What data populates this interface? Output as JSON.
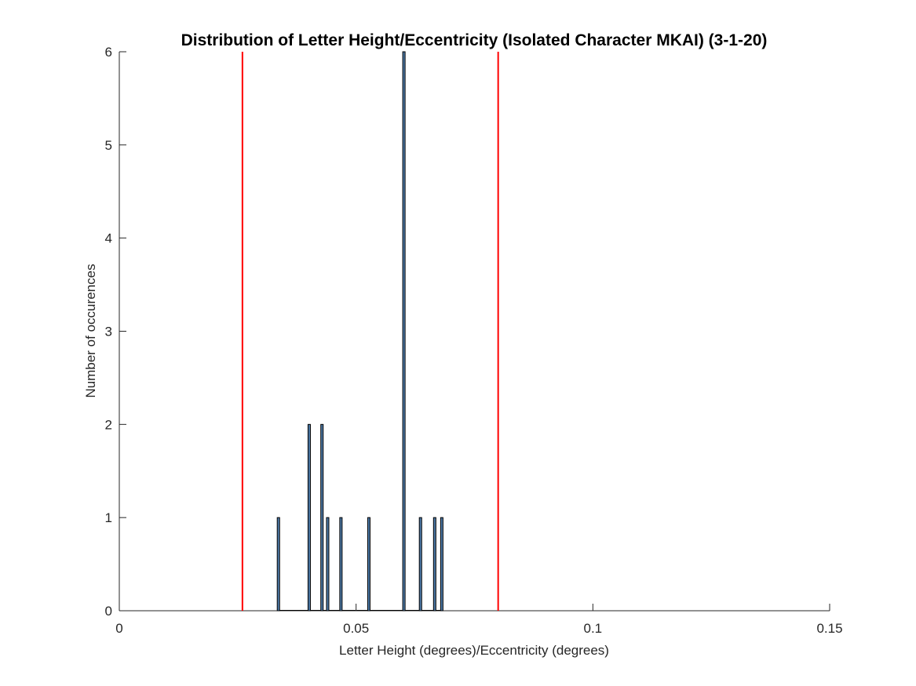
{
  "chart_data": {
    "type": "bar",
    "title": "Distribution of Letter Height/Eccentricity (Isolated Character MKAI) (3-1-20)",
    "xlabel": "Letter Height (degrees)/Eccentricity (degrees)",
    "ylabel": "Number of occurences",
    "xlim": [
      0,
      0.15
    ],
    "ylim": [
      0,
      6
    ],
    "xticks": [
      0,
      0.05,
      0.1,
      0.15
    ],
    "xtick_labels": [
      "0",
      "0.05",
      "0.1",
      "0.15"
    ],
    "yticks": [
      0,
      1,
      2,
      3,
      4,
      5,
      6
    ],
    "ytick_labels": [
      "0",
      "1",
      "2",
      "3",
      "4",
      "5",
      "6"
    ],
    "grid": false,
    "bin_width": 0.0005,
    "bars": [
      {
        "x": 0.0336,
        "value": 1
      },
      {
        "x": 0.0401,
        "value": 2
      },
      {
        "x": 0.0428,
        "value": 2
      },
      {
        "x": 0.044,
        "value": 1
      },
      {
        "x": 0.0468,
        "value": 1
      },
      {
        "x": 0.0527,
        "value": 1
      },
      {
        "x": 0.0601,
        "value": 6
      },
      {
        "x": 0.0636,
        "value": 1
      },
      {
        "x": 0.0666,
        "value": 1
      },
      {
        "x": 0.0681,
        "value": 1
      }
    ],
    "reference_lines": [
      {
        "x": 0.026,
        "color": "#ff0000"
      },
      {
        "x": 0.08,
        "color": "#ff0000"
      }
    ],
    "colors": {
      "bar_fill": "#4d7aa8",
      "bar_edge": "#000000",
      "axis": "#262626"
    }
  }
}
